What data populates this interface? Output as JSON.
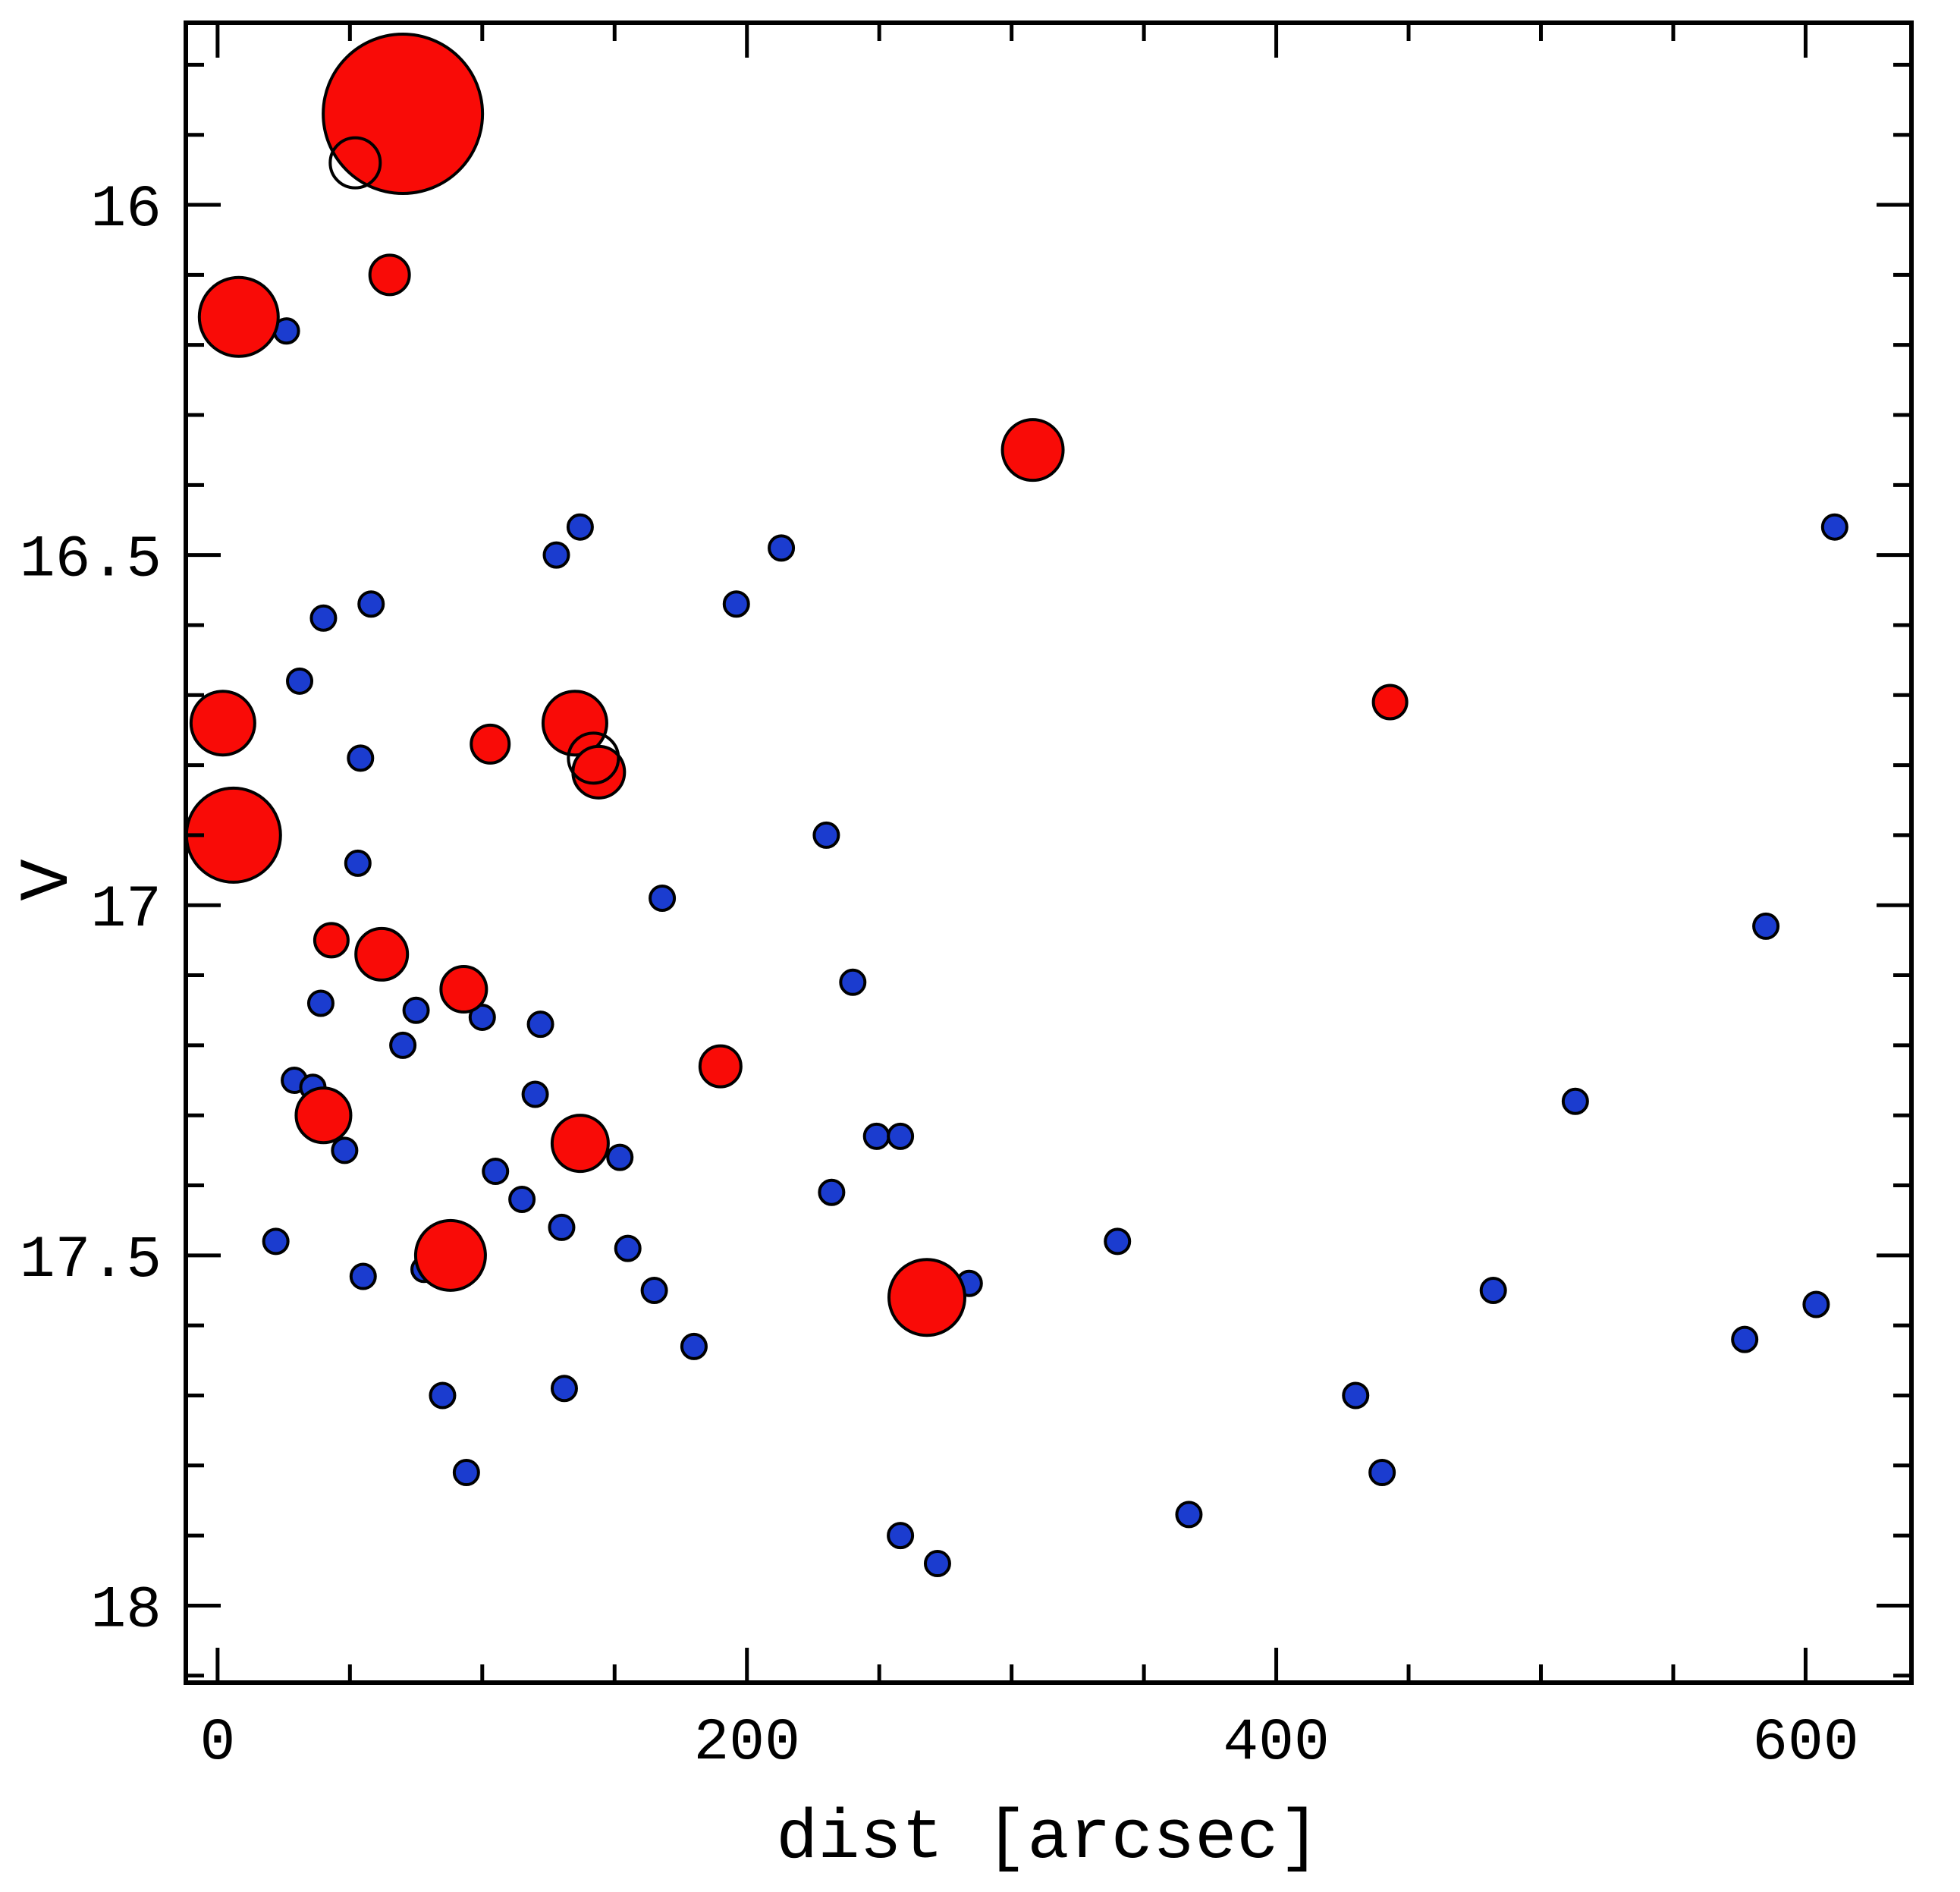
{
  "figure": {
    "background": "#ffffff",
    "frame_color": "#000000"
  },
  "chart_data": {
    "type": "scatter",
    "title": "",
    "xlabel": "dist [arcsec]",
    "ylabel": "V",
    "xlim": [
      -12,
      640
    ],
    "ylim": [
      15.74,
      18.11
    ],
    "y_axis_style": "inverted magnitude axis (bright at top)",
    "x_major_ticks": [
      0,
      200,
      400,
      600
    ],
    "x_minor_tick_step": 50,
    "y_major_ticks": [
      16,
      16.5,
      17,
      17.5,
      18
    ],
    "y_minor_tick_step": 0.1,
    "grid": false,
    "legend": false,
    "point_format": "[dist_arcsec, V_mag, marker_radius_px]",
    "colors": {
      "red": "#f90b07",
      "blue": "#1b3ccf",
      "outline": "#000000"
    },
    "series": [
      {
        "name": "blue-small-points",
        "marker": "filled-circle",
        "color_key": "blue",
        "default_radius": 16,
        "points": [
          [
            26,
            16.18
          ],
          [
            128,
            16.5
          ],
          [
            137,
            16.46
          ],
          [
            213,
            16.49
          ],
          [
            196,
            16.57
          ],
          [
            40,
            16.59
          ],
          [
            58,
            16.57
          ],
          [
            31,
            16.68
          ],
          [
            611,
            16.46
          ],
          [
            54,
            16.79
          ],
          [
            53,
            16.94
          ],
          [
            168,
            16.99
          ],
          [
            230,
            16.9
          ],
          [
            39,
            17.14
          ],
          [
            75,
            17.15
          ],
          [
            70,
            17.2
          ],
          [
            100,
            17.16
          ],
          [
            122,
            17.17
          ],
          [
            29,
            17.25
          ],
          [
            36,
            17.26
          ],
          [
            120,
            17.27
          ],
          [
            48,
            17.35
          ],
          [
            105,
            17.38
          ],
          [
            115,
            17.42
          ],
          [
            130,
            17.46
          ],
          [
            152,
            17.36
          ],
          [
            240,
            17.11
          ],
          [
            249,
            17.33
          ],
          [
            258,
            17.33
          ],
          [
            232,
            17.41
          ],
          [
            155,
            17.49
          ],
          [
            22,
            17.48
          ],
          [
            55,
            17.53
          ],
          [
            78,
            17.52
          ],
          [
            165,
            17.55
          ],
          [
            180,
            17.63
          ],
          [
            85,
            17.7
          ],
          [
            131,
            17.69
          ],
          [
            94,
            17.81
          ],
          [
            284,
            17.54
          ],
          [
            340,
            17.48
          ],
          [
            367,
            17.87
          ],
          [
            430,
            17.7
          ],
          [
            440,
            17.81
          ],
          [
            258,
            17.9
          ],
          [
            272,
            17.94
          ],
          [
            482,
            17.55
          ],
          [
            513,
            17.28
          ],
          [
            577,
            17.62
          ],
          [
            604,
            17.57
          ],
          [
            585,
            17.03
          ]
        ]
      },
      {
        "name": "red-large-points",
        "marker": "filled-circle",
        "color_key": "red",
        "default_radius": 30,
        "points": [
          [
            70,
            15.87,
            105
          ],
          [
            6,
            16.9,
            62
          ],
          [
            8,
            16.16,
            52
          ],
          [
            268,
            17.56,
            50
          ],
          [
            88,
            17.5,
            46
          ],
          [
            2,
            16.74,
            42
          ],
          [
            135,
            16.74,
            42
          ],
          [
            308,
            16.35,
            40
          ],
          [
            137,
            17.34,
            37
          ],
          [
            40,
            17.3,
            36
          ],
          [
            62,
            17.07,
            34
          ],
          [
            144,
            16.81,
            34
          ],
          [
            93,
            17.12,
            30
          ],
          [
            190,
            17.23,
            27
          ],
          [
            65,
            16.1,
            26
          ],
          [
            103,
            16.77,
            25
          ],
          [
            43,
            17.05,
            22
          ],
          [
            443,
            16.71,
            22
          ]
        ]
      },
      {
        "name": "open-circle-points",
        "marker": "open-circle",
        "color_key": "outline",
        "default_radius": 33,
        "points": [
          [
            52,
            15.94,
            33
          ],
          [
            142,
            16.79,
            33
          ]
        ]
      }
    ]
  }
}
